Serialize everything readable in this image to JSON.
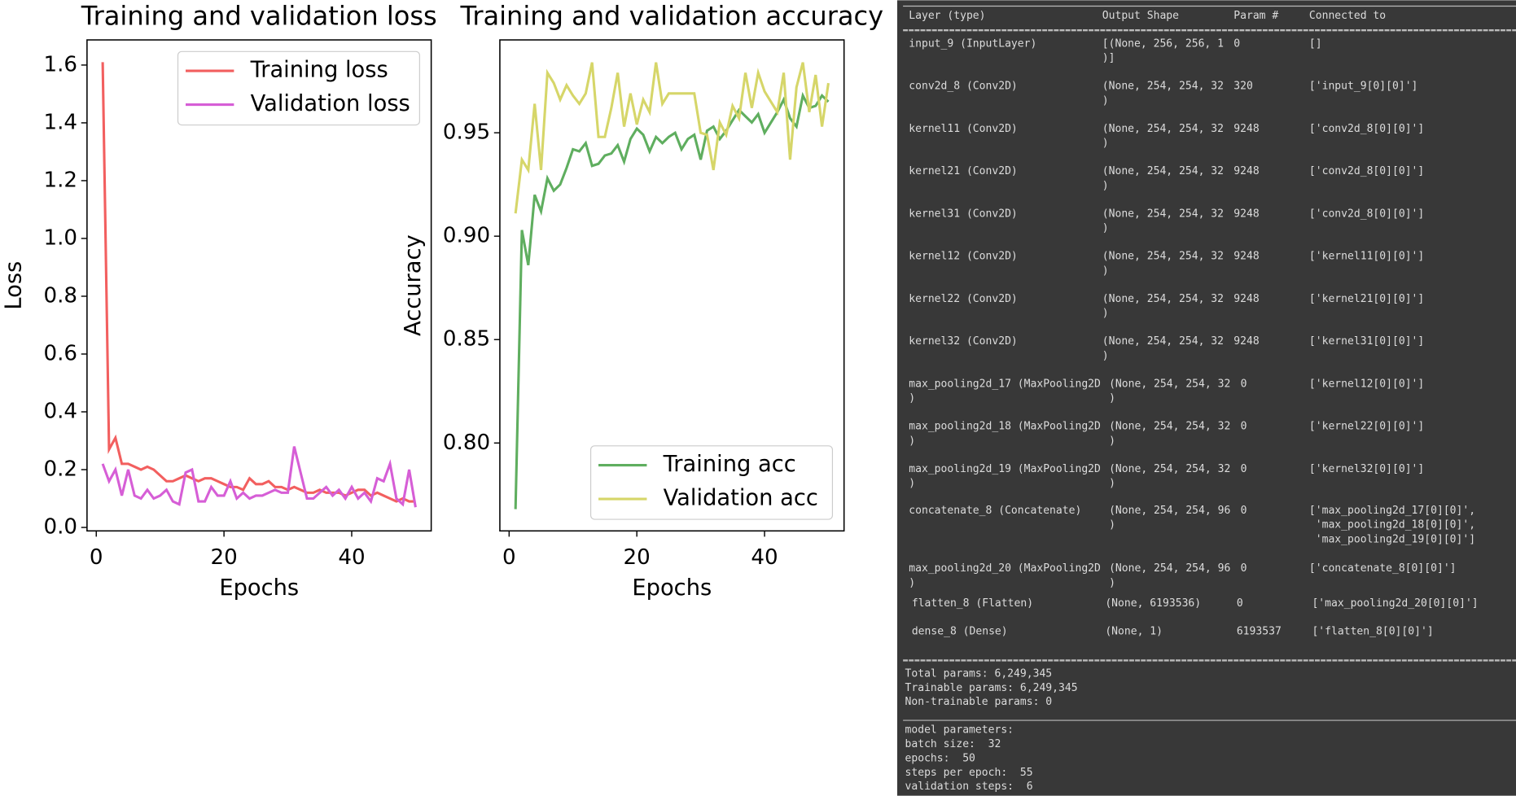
{
  "chart_data": [
    {
      "type": "line",
      "title": "Training and validation loss",
      "x_label": "Epochs",
      "y_label": "Loss",
      "x": [
        1,
        2,
        3,
        4,
        5,
        6,
        7,
        8,
        9,
        10,
        11,
        12,
        13,
        14,
        15,
        16,
        17,
        18,
        19,
        20,
        21,
        22,
        23,
        24,
        25,
        26,
        27,
        28,
        29,
        30,
        31,
        32,
        33,
        34,
        35,
        36,
        37,
        38,
        39,
        40,
        41,
        42,
        43,
        44,
        45,
        46,
        47,
        48,
        49,
        50
      ],
      "series": [
        {
          "name": "Training loss",
          "color": "#f25f5f",
          "values": [
            1.61,
            0.27,
            0.31,
            0.22,
            0.22,
            0.21,
            0.2,
            0.21,
            0.2,
            0.18,
            0.16,
            0.16,
            0.17,
            0.18,
            0.17,
            0.16,
            0.17,
            0.17,
            0.16,
            0.15,
            0.14,
            0.14,
            0.13,
            0.17,
            0.15,
            0.15,
            0.16,
            0.14,
            0.14,
            0.13,
            0.14,
            0.13,
            0.12,
            0.12,
            0.13,
            0.12,
            0.12,
            0.12,
            0.11,
            0.12,
            0.13,
            0.13,
            0.11,
            0.12,
            0.11,
            0.1,
            0.09,
            0.1,
            0.09,
            0.09
          ]
        },
        {
          "name": "Validation loss",
          "color": "#d65ed6",
          "values": [
            0.22,
            0.16,
            0.2,
            0.11,
            0.2,
            0.11,
            0.1,
            0.13,
            0.1,
            0.11,
            0.13,
            0.09,
            0.08,
            0.19,
            0.2,
            0.09,
            0.09,
            0.14,
            0.11,
            0.11,
            0.16,
            0.1,
            0.12,
            0.1,
            0.11,
            0.11,
            0.12,
            0.13,
            0.12,
            0.12,
            0.28,
            0.19,
            0.1,
            0.1,
            0.12,
            0.14,
            0.11,
            0.13,
            0.1,
            0.14,
            0.1,
            0.12,
            0.09,
            0.17,
            0.16,
            0.22,
            0.1,
            0.08,
            0.2,
            0.07
          ]
        }
      ],
      "xlim": [
        -1.45,
        52.45
      ],
      "xticks": [
        0,
        20,
        40
      ],
      "ylim": [
        -0.012,
        1.687
      ],
      "yticks": [
        {
          "value": 0,
          "label": "0.0"
        },
        0.2,
        0.4,
        0.6,
        0.8,
        {
          "value": 1,
          "label": "1.0"
        },
        1.2,
        1.4,
        1.6
      ],
      "legend": "upper right"
    },
    {
      "type": "line",
      "title": "Training and validation accuracy",
      "x_label": "Epochs",
      "y_label": "Accuracy",
      "x": [
        1,
        2,
        3,
        4,
        5,
        6,
        7,
        8,
        9,
        10,
        11,
        12,
        13,
        14,
        15,
        16,
        17,
        18,
        19,
        20,
        21,
        22,
        23,
        24,
        25,
        26,
        27,
        28,
        29,
        30,
        31,
        32,
        33,
        34,
        35,
        36,
        37,
        38,
        39,
        40,
        41,
        42,
        43,
        44,
        45,
        46,
        47,
        48,
        49,
        50
      ],
      "series": [
        {
          "name": "Training acc",
          "color": "#5fae5f",
          "values": [
            0.768,
            0.903,
            0.886,
            0.92,
            0.912,
            0.928,
            0.922,
            0.925,
            0.933,
            0.942,
            0.941,
            0.945,
            0.934,
            0.935,
            0.939,
            0.94,
            0.944,
            0.936,
            0.947,
            0.952,
            0.949,
            0.941,
            0.948,
            0.945,
            0.948,
            0.95,
            0.942,
            0.947,
            0.949,
            0.937,
            0.951,
            0.953,
            0.947,
            0.951,
            0.956,
            0.961,
            0.958,
            0.955,
            0.959,
            0.95,
            0.955,
            0.96,
            0.966,
            0.957,
            0.953,
            0.968,
            0.962,
            0.963,
            0.968,
            0.965
          ]
        },
        {
          "name": "Validation acc",
          "color": "#d6d669",
          "values": [
            0.911,
            0.937,
            0.932,
            0.964,
            0.932,
            0.979,
            0.974,
            0.966,
            0.973,
            0.968,
            0.964,
            0.969,
            0.984,
            0.948,
            0.948,
            0.962,
            0.979,
            0.953,
            0.969,
            0.954,
            0.966,
            0.96,
            0.984,
            0.964,
            0.969,
            0.969,
            0.969,
            0.969,
            0.969,
            0.95,
            0.949,
            0.932,
            0.955,
            0.949,
            0.963,
            0.957,
            0.979,
            0.962,
            0.979,
            0.97,
            0.965,
            0.96,
            0.979,
            0.937,
            0.972,
            0.984,
            0.96,
            0.978,
            0.953,
            0.974
          ]
        }
      ],
      "xlim": [
        -1.45,
        52.45
      ],
      "xticks": [
        0,
        20,
        40
      ],
      "ylim": [
        0.7575,
        0.9949
      ],
      "yticks": [
        {
          "value": 0.8,
          "label": "0.80"
        },
        0.85,
        {
          "value": 0.9,
          "label": "0.90"
        },
        0.95
      ],
      "legend": "lower right"
    }
  ],
  "model_summary": {
    "header": [
      "Layer (type)",
      "Output Shape",
      "Param #",
      "Connected to"
    ],
    "rows": [
      [
        [
          "input_9 (InputLayer)"
        ],
        [
          "[(None, 256, 256, 1",
          ")]"
        ],
        [
          "0"
        ],
        [
          "[]"
        ]
      ],
      [
        [
          "conv2d_8 (Conv2D)"
        ],
        [
          "(None, 254, 254, 32",
          ")"
        ],
        [
          "320"
        ],
        [
          "['input_9[0][0]']"
        ]
      ],
      [
        [
          "kernel11 (Conv2D)"
        ],
        [
          "(None, 254, 254, 32",
          ")"
        ],
        [
          "9248"
        ],
        [
          "['conv2d_8[0][0]']"
        ]
      ],
      [
        [
          "kernel21 (Conv2D)"
        ],
        [
          "(None, 254, 254, 32",
          ")"
        ],
        [
          "9248"
        ],
        [
          "['conv2d_8[0][0]']"
        ]
      ],
      [
        [
          "kernel31 (Conv2D)"
        ],
        [
          "(None, 254, 254, 32",
          ")"
        ],
        [
          "9248"
        ],
        [
          "['conv2d_8[0][0]']"
        ]
      ],
      [
        [
          "kernel12 (Conv2D)"
        ],
        [
          "(None, 254, 254, 32",
          ")"
        ],
        [
          "9248"
        ],
        [
          "['kernel11[0][0]']"
        ]
      ],
      [
        [
          "kernel22 (Conv2D)"
        ],
        [
          "(None, 254, 254, 32",
          ")"
        ],
        [
          "9248"
        ],
        [
          "['kernel21[0][0]']"
        ]
      ],
      [
        [
          "kernel32 (Conv2D)"
        ],
        [
          "(None, 254, 254, 32",
          ")"
        ],
        [
          "9248"
        ],
        [
          "['kernel31[0][0]']"
        ]
      ],
      [
        [
          "max_pooling2d_17 (MaxPooling2D",
          ")"
        ],
        [
          "(None, 254, 254, 32",
          ")"
        ],
        [
          "0"
        ],
        [
          "['kernel12[0][0]']"
        ]
      ],
      [
        [
          "max_pooling2d_18 (MaxPooling2D",
          ")"
        ],
        [
          "(None, 254, 254, 32",
          ")"
        ],
        [
          "0"
        ],
        [
          "['kernel22[0][0]']"
        ]
      ],
      [
        [
          "max_pooling2d_19 (MaxPooling2D",
          ")"
        ],
        [
          "(None, 254, 254, 32",
          ")"
        ],
        [
          "0"
        ],
        [
          "['kernel32[0][0]']"
        ]
      ],
      [
        [
          "concatenate_8 (Concatenate)"
        ],
        [
          "(None, 254, 254, 96",
          ")"
        ],
        [
          "0"
        ],
        [
          "['max_pooling2d_17[0][0]',",
          " 'max_pooling2d_18[0][0]',",
          " 'max_pooling2d_19[0][0]']"
        ]
      ],
      [
        [
          "max_pooling2d_20 (MaxPooling2D",
          ")"
        ],
        [
          "(None, 254, 254, 96",
          ")"
        ],
        [
          "0"
        ],
        [
          "['concatenate_8[0][0]']"
        ]
      ],
      [
        [
          "flatten_8 (Flatten)"
        ],
        [
          "(None, 6193536)"
        ],
        [
          "0"
        ],
        [
          "['max_pooling2d_20[0][0]']"
        ]
      ],
      [
        [
          "dense_8 (Dense)"
        ],
        [
          "(None, 1)"
        ],
        [
          "6193537"
        ],
        [
          "['flatten_8[0][0]']"
        ]
      ]
    ],
    "totals": [
      "Total params: 6,249,345",
      "Trainable params: 6,249,345",
      "Non-trainable params: 0"
    ],
    "parameters": [
      "model parameters:",
      "batch size:  32",
      "epochs:  50",
      "steps per epoch:  55",
      "validation steps:  6"
    ]
  }
}
